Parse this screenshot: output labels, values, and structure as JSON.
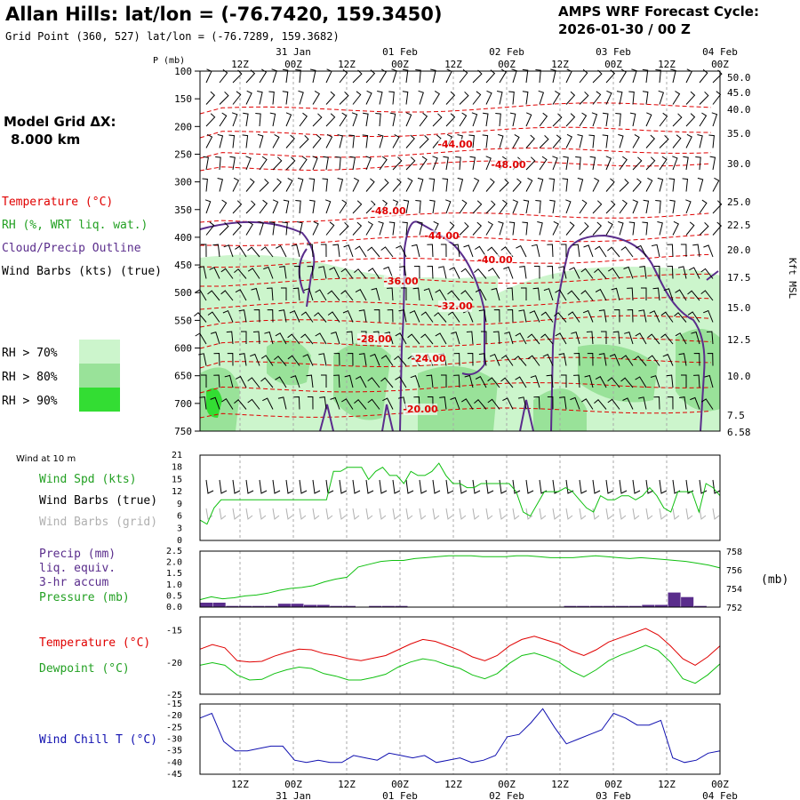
{
  "header": {
    "title": "Allan Hills:  lat/lon = (-76.7420, 159.3450)",
    "subtitle": "Grid Point (360, 527) lat/lon = (-76.7289, 159.3682)",
    "cycle_label": "AMPS WRF Forecast Cycle:",
    "cycle_value": "2026-01-30 / 00  Z"
  },
  "model": {
    "grid_label": "Model Grid ΔX:",
    "grid_value": "8.000 km"
  },
  "legend": {
    "temperature": "Temperature (°C)",
    "rh": "RH (%, WRT liq. wat.)",
    "cloud": "Cloud/Precip Outline",
    "wind_barbs": "Wind Barbs (kts) (true)",
    "rh70": "RH > 70%",
    "rh80": "RH > 80%",
    "rh90": "RH > 90%"
  },
  "colors": {
    "temperature": "#e00000",
    "rh_text": "#22a022",
    "cloud": "#5a2d8c",
    "rh70": "#ccf5cc",
    "rh80": "#99e299",
    "rh90": "#33dd33",
    "dewpoint": "#10c010",
    "windchill": "#1010b0",
    "precip": "#5a2d8c",
    "gray_text": "#b0b0b0"
  },
  "time_axis": {
    "top_ticks": [
      "12Z",
      "00Z",
      "12Z",
      "00Z",
      "12Z",
      "00Z",
      "12Z",
      "00Z",
      "12Z",
      "00Z"
    ],
    "date_labels": [
      "31 Jan",
      "01 Feb",
      "02 Feb",
      "03 Feb",
      "04 Feb"
    ],
    "bottom_ticks": [
      "12Z",
      "00Z",
      "12Z",
      "00Z",
      "12Z",
      "00Z",
      "12Z",
      "00Z",
      "12Z",
      "00Z"
    ]
  },
  "chart_data": [
    {
      "type": "cross-section",
      "title": "Vertical time cross-section",
      "ylabel": "P (mb)",
      "yticks": [
        "100",
        "150",
        "200",
        "250",
        "300",
        "350",
        "400",
        "450",
        "500",
        "550",
        "600",
        "650",
        "700",
        "750"
      ],
      "right_label": "Kft MSL",
      "right_ticks": [
        "50.0",
        "45.0",
        "40.0",
        "35.0",
        "30.0",
        "25.0",
        "22.5",
        "20.0",
        "17.5",
        "15.0",
        "12.5",
        "10.0",
        "7.5",
        "6.58"
      ],
      "temperature_labels": [
        "-44.00",
        "-48.00",
        "-48.00",
        "-44.00",
        "-40.00",
        "-36.00",
        "-32.00",
        "-28.00",
        "-24.00",
        "-20.00"
      ]
    },
    {
      "type": "line",
      "title": "Wind at 10 m",
      "series_label": "Wind Spd (kts)",
      "barbs_true_label": "Wind Barbs (true)",
      "barbs_grid_label": "Wind Barbs (grid)",
      "yticks": [
        "21",
        "18",
        "15",
        "12",
        "9",
        "6",
        "3",
        "0"
      ],
      "ylim": [
        0,
        21
      ],
      "values": [
        5,
        4,
        8,
        10,
        10,
        10,
        10,
        10,
        10,
        10,
        10,
        10,
        10,
        10,
        10,
        10,
        10,
        10,
        10,
        17,
        17,
        18,
        18,
        18,
        15,
        17,
        18,
        16,
        16,
        14,
        17,
        16,
        16,
        17,
        19,
        16,
        14,
        14,
        13,
        13,
        14,
        14,
        14,
        14,
        14,
        12,
        7,
        6,
        9,
        12,
        12,
        12,
        13,
        12,
        10,
        8,
        7,
        11,
        10,
        10,
        11,
        11,
        10,
        11,
        13,
        11,
        8,
        7,
        12,
        12,
        12,
        7,
        14,
        13,
        11
      ]
    },
    {
      "type": "bar+line",
      "precip_label": "Precip (mm)",
      "precip_label2": "liq. equiv.",
      "precip_label3": "3-hr accum",
      "pressure_label": "Pressure (mb)",
      "unit_label": "(mb)",
      "left_ticks": [
        "2.5",
        "2.0",
        "1.5",
        "1.0",
        "0.5",
        "0.0"
      ],
      "right_ticks": [
        "758",
        "756",
        "754",
        "752"
      ],
      "precip_ylim": [
        0,
        2.5
      ],
      "pressure_ylim": [
        752,
        758
      ],
      "precip": [
        0.2,
        0.2,
        0.05,
        0.05,
        0.05,
        0.05,
        0.15,
        0.15,
        0.1,
        0.1,
        0.05,
        0.05,
        0.0,
        0.05,
        0.05,
        0.05,
        0.0,
        0.0,
        0.0,
        0.0,
        0.0,
        0.0,
        0.0,
        0.0,
        0.0,
        0.0,
        0.0,
        0.0,
        0.05,
        0.05,
        0.05,
        0.05,
        0.05,
        0.05,
        0.1,
        0.1,
        0.65,
        0.45,
        0.05,
        0.0
      ],
      "pressure": [
        752.8,
        753.1,
        752.9,
        753.0,
        753.2,
        753.3,
        753.5,
        753.8,
        754.0,
        754.1,
        754.3,
        754.7,
        755.0,
        755.2,
        756.3,
        756.6,
        756.9,
        757.0,
        757.0,
        757.2,
        757.3,
        757.4,
        757.5,
        757.5,
        757.5,
        757.4,
        757.4,
        757.4,
        757.5,
        757.5,
        757.4,
        757.3,
        757.3,
        757.3,
        757.4,
        757.5,
        757.4,
        757.3,
        757.2,
        757.3,
        757.2,
        757.1,
        757.0,
        756.9,
        756.7,
        756.5,
        756.2
      ]
    },
    {
      "type": "line",
      "series": [
        {
          "name": "Temperature (°C)",
          "values": [
            -18.0,
            -17.3,
            -17.8,
            -19.8,
            -20.0,
            -19.9,
            -19.1,
            -18.5,
            -18.0,
            -18.1,
            -18.7,
            -19.0,
            -19.5,
            -19.8,
            -19.4,
            -19.0,
            -18.1,
            -17.2,
            -16.5,
            -16.8,
            -17.5,
            -18.2,
            -19.2,
            -19.8,
            -19.0,
            -17.5,
            -16.5,
            -16.0,
            -16.6,
            -17.2,
            -18.3,
            -19.0,
            -18.1,
            -16.9,
            -16.2,
            -15.5,
            -14.8,
            -15.8,
            -17.5,
            -19.5,
            -20.5,
            -19.2,
            -17.5
          ]
        },
        {
          "name": "Dewpoint (°C)",
          "values": [
            -20.5,
            -20.1,
            -20.5,
            -22.0,
            -22.8,
            -22.7,
            -21.8,
            -21.2,
            -20.8,
            -21.0,
            -21.8,
            -22.2,
            -22.8,
            -22.8,
            -22.4,
            -21.9,
            -20.8,
            -20.0,
            -19.5,
            -19.8,
            -20.5,
            -21.0,
            -22.0,
            -22.6,
            -21.8,
            -20.2,
            -19.0,
            -18.6,
            -19.2,
            -20.0,
            -21.4,
            -22.3,
            -21.2,
            -19.8,
            -18.9,
            -18.2,
            -17.4,
            -18.2,
            -20.0,
            -22.6,
            -23.3,
            -22.0,
            -20.3
          ]
        }
      ],
      "yticks": [
        "-15",
        "-20",
        "-25"
      ],
      "ylim": [
        -25,
        -13
      ]
    },
    {
      "type": "line",
      "series_label": "Wind Chill T (°C)",
      "yticks": [
        "-15",
        "-20",
        "-25",
        "-30",
        "-35",
        "-40",
        "-45"
      ],
      "ylim": [
        -45,
        -15
      ],
      "values": [
        -21,
        -19,
        -31,
        -35,
        -35,
        -34,
        -33,
        -33,
        -39,
        -40,
        -39,
        -40,
        -40,
        -37,
        -38,
        -39,
        -36,
        -37,
        -38,
        -37,
        -40,
        -39,
        -38,
        -40,
        -39,
        -37,
        -29,
        -28,
        -23,
        -17,
        -25,
        -32,
        -30,
        -28,
        -26,
        -19,
        -21,
        -24,
        -24,
        -22,
        -38,
        -40,
        -39,
        -36,
        -35
      ]
    }
  ]
}
